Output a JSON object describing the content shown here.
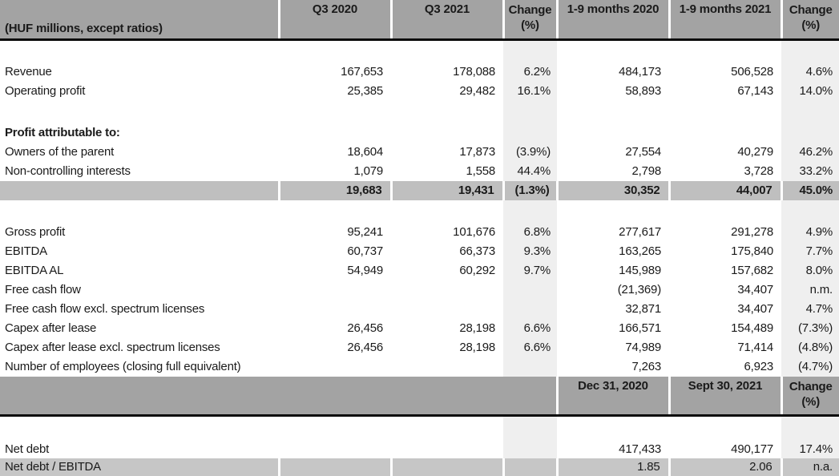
{
  "colors": {
    "header_bg": "#a3a3a3",
    "subtotal_row_bg": "#bfbfbf",
    "ratio_row_bg": "#c6c6c6",
    "change_column_bg": "#efefef",
    "divider_black": "#0a0a0a",
    "text": "#1a1a1a",
    "page_bg": "#ffffff"
  },
  "header": {
    "unit_label": "(HUF millions, except ratios)",
    "col_q3_2020": "Q3 2020",
    "col_q3_2021": "Q3 2021",
    "col_change_line1": "Change",
    "col_change_line2": "(%)",
    "col_9m_2020": "1-9 months 2020",
    "col_9m_2021": "1-9 months 2021"
  },
  "header2": {
    "col_date_2020": "Dec 31, 2020",
    "col_date_2021": "Sept 30, 2021",
    "col_change_line1": "Change",
    "col_change_line2": "(%)"
  },
  "rows": [
    {
      "type": "blank",
      "label": "",
      "values": [
        "",
        "",
        "",
        "",
        "",
        ""
      ]
    },
    {
      "type": "data",
      "label": "Revenue",
      "values": [
        "167,653",
        "178,088",
        "6.2%",
        "484,173",
        "506,528",
        "4.6%"
      ]
    },
    {
      "type": "data",
      "label": "Operating profit",
      "values": [
        "25,385",
        "29,482",
        "16.1%",
        "58,893",
        "67,143",
        "14.0%"
      ]
    },
    {
      "type": "blank",
      "label": "",
      "values": [
        "",
        "",
        "",
        "",
        "",
        ""
      ]
    },
    {
      "type": "section",
      "label": "Profit attributable to:",
      "values": [
        "",
        "",
        "",
        "",
        "",
        ""
      ]
    },
    {
      "type": "data",
      "label": "Owners of the parent",
      "values": [
        "18,604",
        "17,873",
        "(3.9%)",
        "27,554",
        "40,279",
        "46.2%"
      ]
    },
    {
      "type": "data",
      "label": "Non-controlling interests",
      "values": [
        "1,079",
        "1,558",
        "44.4%",
        "2,798",
        "3,728",
        "33.2%"
      ]
    },
    {
      "type": "total",
      "label": "",
      "values": [
        "19,683",
        "19,431",
        "(1.3%)",
        "30,352",
        "44,007",
        "45.0%"
      ]
    },
    {
      "type": "blank",
      "label": "",
      "values": [
        "",
        "",
        "",
        "",
        "",
        ""
      ]
    },
    {
      "type": "data",
      "label": "Gross profit",
      "values": [
        "95,241",
        "101,676",
        "6.8%",
        "277,617",
        "291,278",
        "4.9%"
      ]
    },
    {
      "type": "data",
      "label": "EBITDA",
      "values": [
        "60,737",
        "66,373",
        "9.3%",
        "163,265",
        "175,840",
        "7.7%"
      ]
    },
    {
      "type": "data",
      "label": "EBITDA AL",
      "values": [
        "54,949",
        "60,292",
        "9.7%",
        "145,989",
        "157,682",
        "8.0%"
      ]
    },
    {
      "type": "data",
      "label": "Free cash flow",
      "values": [
        "",
        "",
        "",
        "(21,369)",
        "34,407",
        "n.m."
      ]
    },
    {
      "type": "data",
      "label": "Free cash flow excl. spectrum licenses",
      "values": [
        "",
        "",
        "",
        "32,871",
        "34,407",
        "4.7%"
      ]
    },
    {
      "type": "data",
      "label": "Capex after lease",
      "values": [
        "26,456",
        "28,198",
        "6.6%",
        "166,571",
        "154,489",
        "(7.3%)"
      ]
    },
    {
      "type": "data",
      "label": "Capex after lease excl. spectrum licenses",
      "values": [
        "26,456",
        "28,198",
        "6.6%",
        "74,989",
        "71,414",
        "(4.8%)"
      ]
    },
    {
      "type": "data",
      "label": "Number of employees (closing full equivalent)",
      "values": [
        "",
        "",
        "",
        "7,263",
        "6,923",
        "(4.7%)"
      ]
    }
  ],
  "bottom_rows": [
    {
      "type": "blank",
      "label": "",
      "values": [
        "",
        "",
        "",
        "",
        "",
        ""
      ]
    },
    {
      "type": "netdebt",
      "label": "Net debt",
      "values": [
        "",
        "",
        "",
        "417,433",
        "490,177",
        "17.4%"
      ]
    },
    {
      "type": "ratio",
      "label": "Net debt / EBITDA",
      "values": [
        "",
        "",
        "",
        "1.85",
        "2.06",
        "n.a."
      ]
    }
  ]
}
